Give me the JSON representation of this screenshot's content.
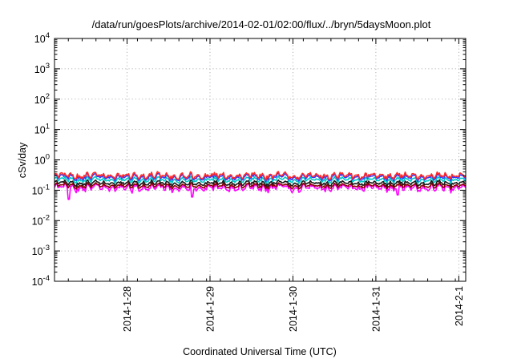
{
  "chart_data": {
    "type": "line",
    "title": "/data/run/goesPlots/archive/2014-02-01/02:00/flux/../bryn/5daysMoon.plot",
    "xlabel": "Coordinated Universal Time (UTC)",
    "ylabel": "cSv/day",
    "y_scale": "log",
    "ylim": [
      0.0001,
      10000
    ],
    "xlim": [
      "2014-01-27 03:00",
      "2014-02-01 02:00"
    ],
    "x_tick_labels": [
      "2014-1-28",
      "2014-1-29",
      "2014-1-30",
      "2014-1-31",
      "2014-2-1"
    ],
    "x_tick_values": [
      "2014-01-28",
      "2014-01-29",
      "2014-01-30",
      "2014-01-31",
      "2014-02-01"
    ],
    "y_tick_base": "10",
    "y_tick_exponents": [
      "-4",
      "-3",
      "-2",
      "-1",
      "0",
      "1",
      "2",
      "3",
      "4"
    ],
    "y_tick_values": [
      0.0001,
      0.001,
      0.01,
      0.1,
      1,
      10,
      100,
      1000,
      10000
    ],
    "grid": true,
    "legend": "none",
    "series": [
      {
        "color": "#ff00ff",
        "base": 0.12,
        "min_dips": [
          0.05,
          0.06,
          0.07,
          0.08
        ],
        "spread": 0.3
      },
      {
        "color": "#8b0000",
        "base": 0.14,
        "spread": 0.2
      },
      {
        "color": "#1a1a1a",
        "base": 0.17,
        "spread": 0.2
      },
      {
        "color": "#00c8c8",
        "base": 0.22,
        "spread": 0.22
      },
      {
        "color": "#3333ff",
        "base": 0.27,
        "spread": 0.25
      },
      {
        "color": "#ff2a2a",
        "base": 0.3,
        "spread": 0.25
      }
    ],
    "series_approx_ranges": [
      {
        "color": "#ff00ff",
        "min": 0.05,
        "max": 0.2
      },
      {
        "color": "#8b0000",
        "min": 0.1,
        "max": 0.22
      },
      {
        "color": "#1a1a1a",
        "min": 0.12,
        "max": 0.26
      },
      {
        "color": "#00c8c8",
        "min": 0.15,
        "max": 0.32
      },
      {
        "color": "#3333ff",
        "min": 0.18,
        "max": 0.45
      },
      {
        "color": "#ff2a2a",
        "min": 0.2,
        "max": 0.5
      }
    ]
  }
}
